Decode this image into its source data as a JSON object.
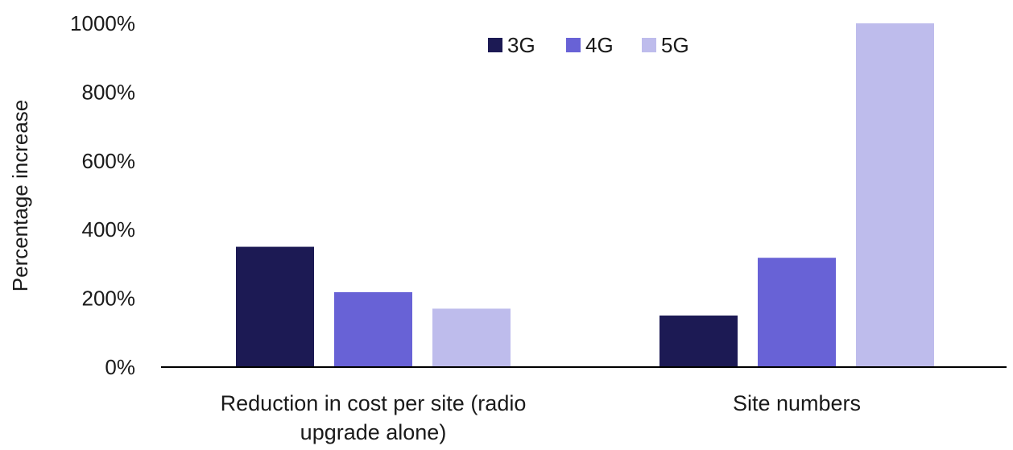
{
  "chart_data": {
    "type": "bar",
    "title": "",
    "xlabel": "",
    "ylabel": "Percentage increase",
    "categories": [
      [
        "Reduction in cost per site (radio",
        "upgrade alone)"
      ],
      [
        "Site numbers"
      ]
    ],
    "series": [
      {
        "name": "3G",
        "color": "#1c1a54",
        "values": [
          350,
          150
        ]
      },
      {
        "name": "4G",
        "color": "#6862d6",
        "values": [
          218,
          318
        ]
      },
      {
        "name": "5G",
        "color": "#bebcec",
        "values": [
          170,
          1000
        ]
      }
    ],
    "ylim": [
      0,
      1000
    ],
    "yticks": [
      0,
      200,
      400,
      600,
      800,
      1000
    ],
    "ytick_labels": [
      "0%",
      "200%",
      "400%",
      "600%",
      "800%",
      "1000%"
    ],
    "grid": false,
    "legend_position": "top-center"
  }
}
